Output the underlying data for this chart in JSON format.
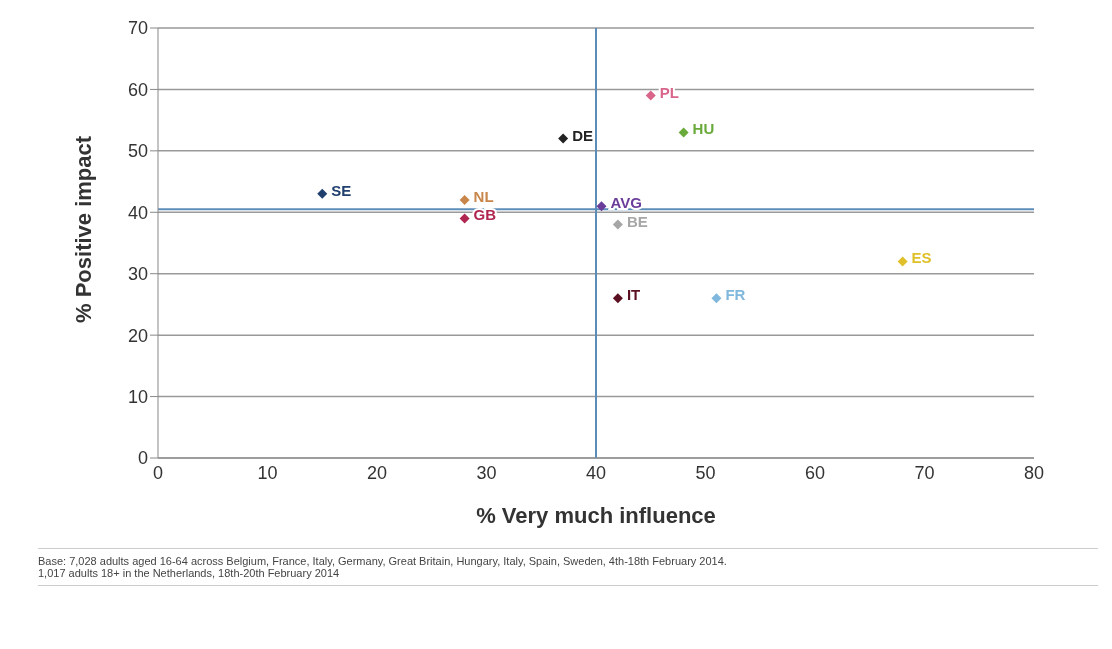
{
  "chart_data": {
    "type": "scatter",
    "xlabel": "% Very much influence",
    "ylabel": "% Positive impact",
    "xlim": [
      0,
      80
    ],
    "xticks": [
      0,
      10,
      20,
      30,
      40,
      50,
      60,
      70,
      80
    ],
    "ylim": [
      0,
      70
    ],
    "yticks": [
      0,
      10,
      20,
      30,
      40,
      50,
      60,
      70
    ],
    "grid": "y",
    "legend": false,
    "marker": "diamond",
    "series": [
      {
        "name": "SE",
        "color": "#1f3f6e",
        "x": [
          15
        ],
        "values": [
          43
        ]
      },
      {
        "name": "NL",
        "color": "#c8864a",
        "x": [
          28
        ],
        "values": [
          42
        ]
      },
      {
        "name": "GB",
        "color": "#b02650",
        "x": [
          28
        ],
        "values": [
          39
        ]
      },
      {
        "name": "DE",
        "color": "#222222",
        "x": [
          37
        ],
        "values": [
          52
        ]
      },
      {
        "name": "AVG",
        "color": "#6a3d9a",
        "x": [
          40.5
        ],
        "values": [
          41
        ]
      },
      {
        "name": "BE",
        "color": "#a6a6a6",
        "x": [
          42
        ],
        "values": [
          38
        ]
      },
      {
        "name": "IT",
        "color": "#5a1020",
        "x": [
          42
        ],
        "values": [
          26
        ]
      },
      {
        "name": "PL",
        "color": "#d9668a",
        "x": [
          45
        ],
        "values": [
          59
        ]
      },
      {
        "name": "HU",
        "color": "#6aaa3a",
        "x": [
          48
        ],
        "values": [
          53
        ]
      },
      {
        "name": "FR",
        "color": "#7fb8dc",
        "x": [
          51
        ],
        "values": [
          26
        ]
      },
      {
        "name": "ES",
        "color": "#e0c02a",
        "x": [
          68
        ],
        "values": [
          32
        ]
      }
    ],
    "ref_lines": [
      {
        "axis": "x",
        "value": 40,
        "color": "#5b8db8"
      },
      {
        "axis": "y",
        "value": 40.5,
        "color": "#5b8db8"
      }
    ],
    "annotations": [
      "Base: 7,028 adults aged 16-64 across Belgium, France, Italy, Germany, Great Britain, Hungary, Italy, Spain, Sweden, 4th-18th February 2014. 1,017 adults 18+ in the Netherlands, 18th-20th February 2014"
    ]
  }
}
